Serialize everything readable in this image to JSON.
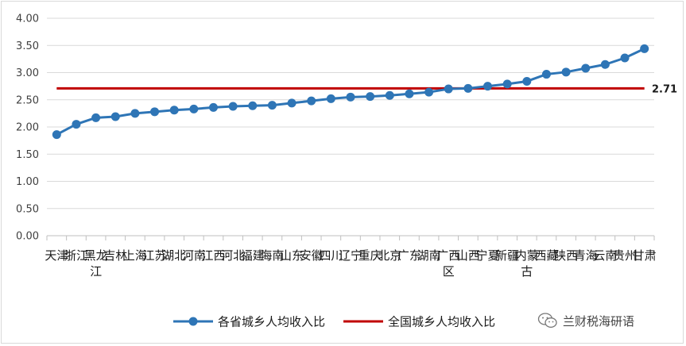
{
  "chart_data": {
    "type": "line",
    "categories": [
      "天津",
      "浙江",
      "黑龙江",
      "吉林",
      "上海",
      "江苏",
      "湖北",
      "河南",
      "江西",
      "河北",
      "福建",
      "海南",
      "山东",
      "安徽",
      "四川",
      "辽宁",
      "重庆",
      "北京",
      "广东",
      "湖南",
      "广西区",
      "山西",
      "宁夏",
      "新疆",
      "内蒙古",
      "西藏",
      "陕西",
      "青海",
      "云南",
      "贵州",
      "甘肃"
    ],
    "series": [
      {
        "name": "各省城乡人均收入比",
        "color": "#2e75b6",
        "values": [
          1.86,
          2.05,
          2.17,
          2.19,
          2.25,
          2.28,
          2.31,
          2.33,
          2.36,
          2.38,
          2.39,
          2.4,
          2.44,
          2.48,
          2.52,
          2.55,
          2.56,
          2.58,
          2.61,
          2.64,
          2.7,
          2.71,
          2.75,
          2.79,
          2.84,
          2.97,
          3.01,
          3.08,
          3.15,
          3.27,
          3.44
        ]
      }
    ],
    "reference_line": {
      "name": "全国城乡人均收入比",
      "value": 2.71,
      "label": "2.71",
      "color": "#c00000"
    },
    "yticks": [
      "0.00",
      "0.50",
      "1.00",
      "1.50",
      "2.00",
      "2.50",
      "3.00",
      "3.50",
      "4.00"
    ],
    "ylim": [
      0,
      4
    ],
    "title": "",
    "xlabel": "",
    "ylabel": "",
    "legend_position": "bottom"
  },
  "watermark": {
    "text": "兰财税海研语",
    "icon": "wechat-icon"
  }
}
